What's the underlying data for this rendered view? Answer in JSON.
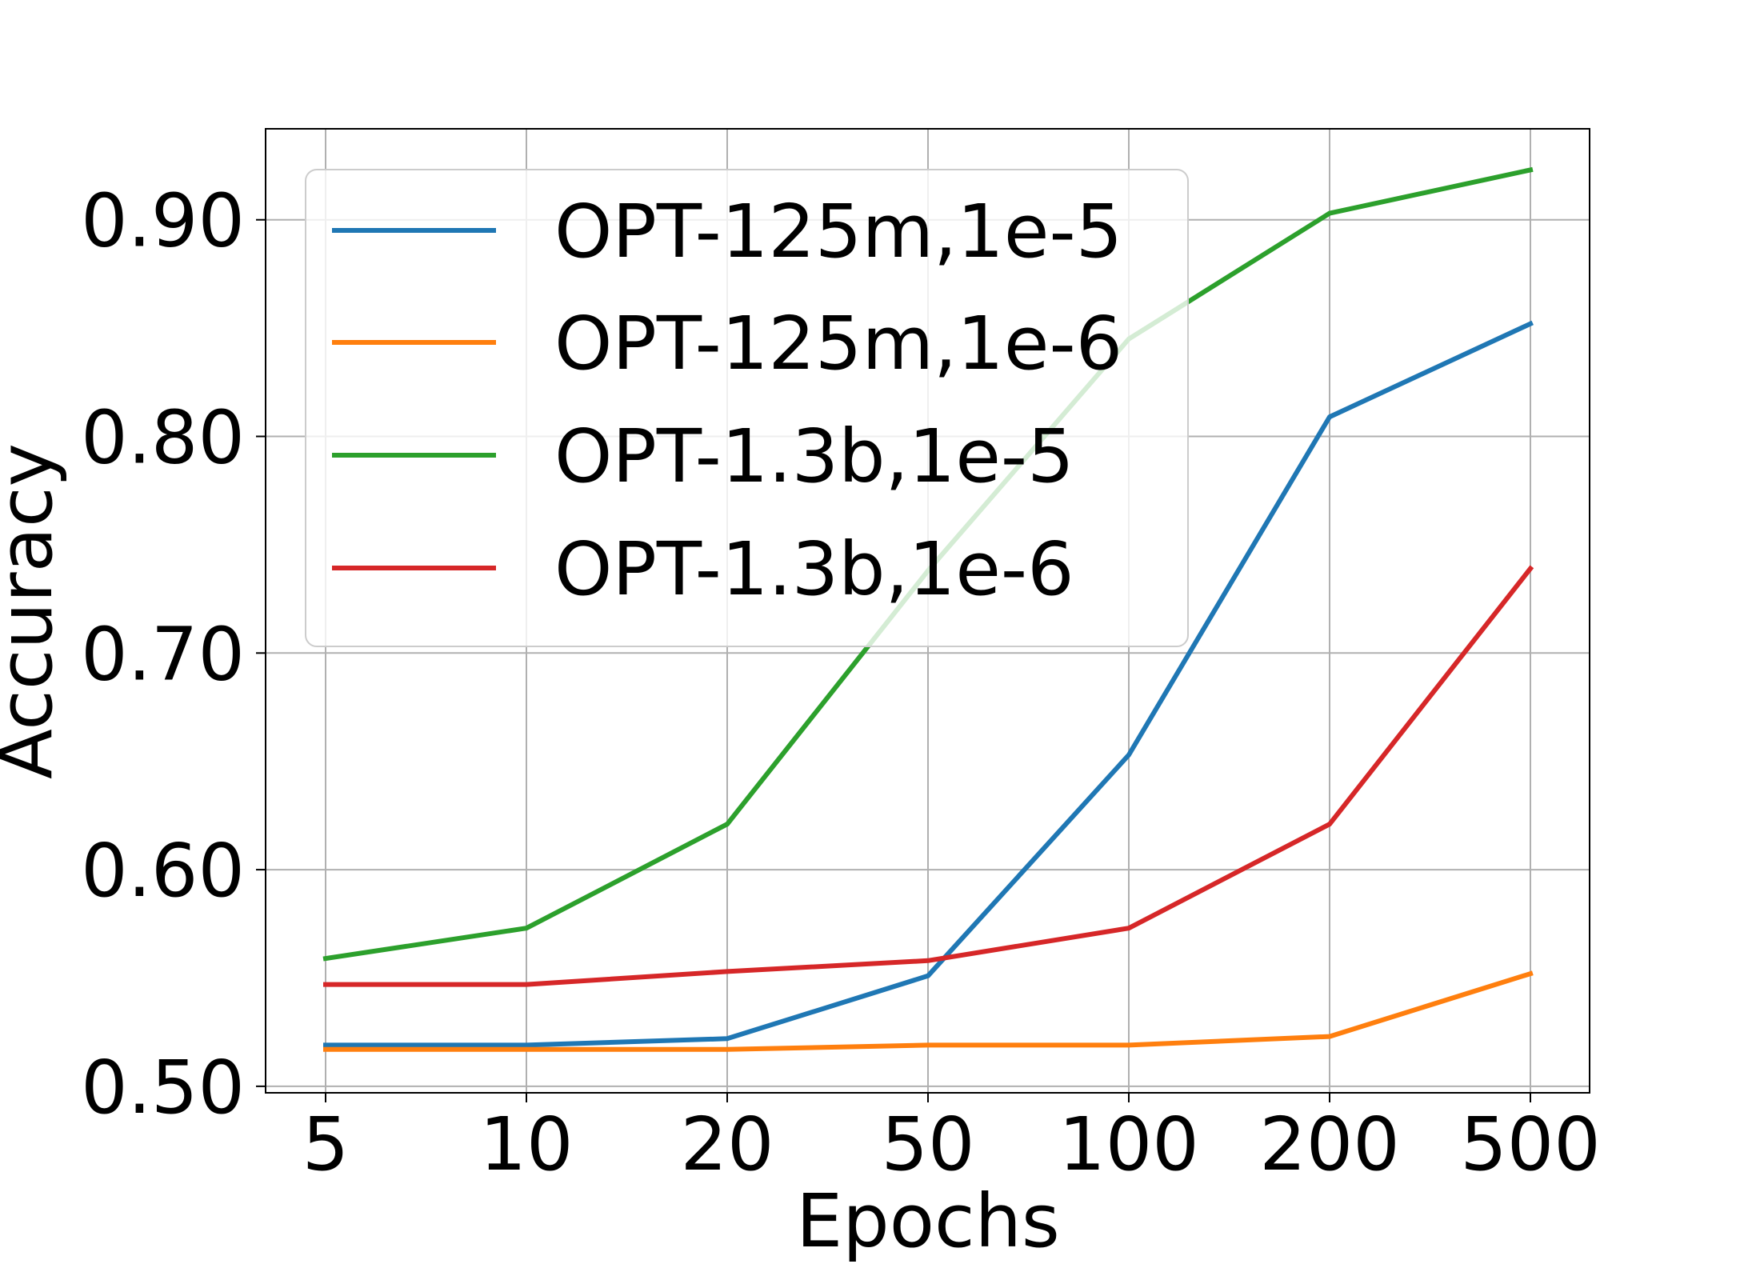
{
  "chart_data": {
    "type": "line",
    "xlabel": "Epochs",
    "ylabel": "Accuracy",
    "categories": [
      "5",
      "10",
      "20",
      "50",
      "100",
      "200",
      "500"
    ],
    "yticks": [
      "0.50",
      "0.60",
      "0.70",
      "0.80",
      "0.90"
    ],
    "ylim": [
      0.497,
      0.942
    ],
    "grid": true,
    "legend_position": "top-left",
    "series": [
      {
        "name": "OPT-125m,1e-5",
        "color": "#1f77b4",
        "values": [
          0.519,
          0.519,
          0.522,
          0.551,
          0.653,
          0.809,
          0.852
        ]
      },
      {
        "name": "OPT-125m,1e-6",
        "color": "#ff7f0e",
        "values": [
          0.517,
          0.517,
          0.517,
          0.519,
          0.519,
          0.523,
          0.552
        ]
      },
      {
        "name": "OPT-1.3b,1e-5",
        "color": "#2ca02c",
        "values": [
          0.559,
          0.573,
          0.621,
          0.738,
          0.845,
          0.903,
          0.923
        ]
      },
      {
        "name": "OPT-1.3b,1e-6",
        "color": "#d62728",
        "values": [
          0.547,
          0.547,
          0.553,
          0.558,
          0.573,
          0.621,
          0.739
        ]
      }
    ]
  }
}
